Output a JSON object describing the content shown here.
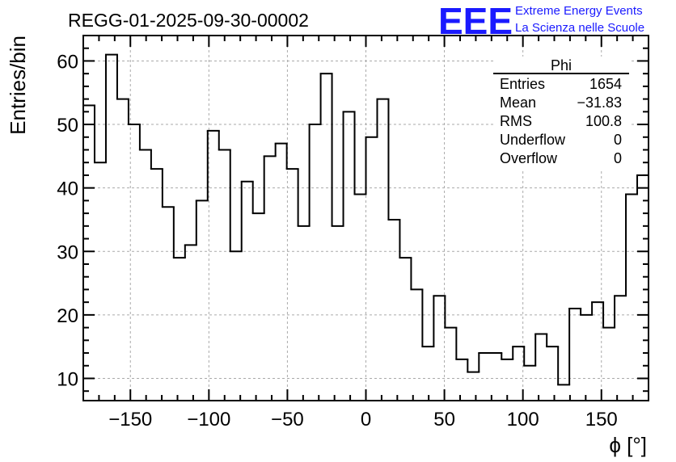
{
  "header": {
    "run_title": "REGG-01-2025-09-30-00002",
    "logo_text": "EEE",
    "project_line1": "Extreme Energy Events",
    "project_line2": "La Scienza nelle Scuole"
  },
  "stats_box": {
    "title": "Phi",
    "rows": [
      {
        "label": "Entries",
        "value": "1654"
      },
      {
        "label": "Mean",
        "value": "−31.83"
      },
      {
        "label": "RMS",
        "value": "100.8"
      },
      {
        "label": "Underflow",
        "value": "0"
      },
      {
        "label": "Overflow",
        "value": "0"
      }
    ]
  },
  "colors": {
    "logo": "#1a1aff",
    "line": "#000000",
    "grid": "#aaaaaa"
  },
  "chart_data": {
    "type": "histogram",
    "title": "REGG-01-2025-09-30-00002",
    "xlabel": "ϕ [°]",
    "ylabel": "Entries/bin",
    "xlim": [
      -180,
      180
    ],
    "ylim": [
      6.5,
      64
    ],
    "bin_width": 7.2,
    "values": [
      53,
      44,
      61,
      54,
      50,
      46,
      43,
      37,
      29,
      31,
      38,
      49,
      46,
      30,
      41,
      36,
      45,
      47,
      43,
      34,
      50,
      58,
      34,
      52,
      39,
      48,
      54,
      35,
      29,
      24,
      15,
      23,
      18,
      13,
      11,
      14,
      14,
      13,
      15,
      12,
      17,
      15,
      9,
      21,
      20,
      22,
      18,
      23,
      39,
      42
    ],
    "x_ticks": [
      -150,
      -100,
      -50,
      0,
      50,
      100,
      150
    ],
    "x_tick_labels": [
      "−150",
      "−100",
      "−50",
      "0",
      "50",
      "100",
      "150"
    ],
    "y_ticks": [
      10,
      20,
      30,
      40,
      50,
      60
    ],
    "y_tick_labels": [
      "10",
      "20",
      "30",
      "40",
      "50",
      "60"
    ],
    "grid": true
  }
}
